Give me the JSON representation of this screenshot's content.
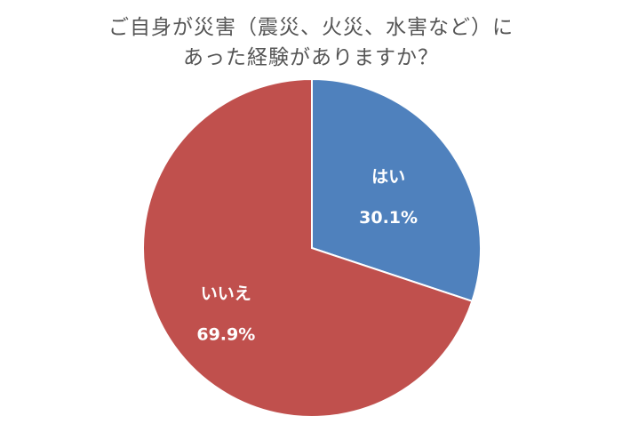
{
  "title_lines": [
    "ご自身が災害（震災、火災、水害など）に",
    "あった経験がありますか？"
  ],
  "chart_data": {
    "type": "pie",
    "title": "ご自身が災害（震災、火災、水害など）にあった経験がありますか？",
    "slices": [
      {
        "label": "はい",
        "value": 30.1,
        "value_label": "30.1%",
        "color": "#4f81bd"
      },
      {
        "label": "いいえ",
        "value": 69.9,
        "value_label": "69.9%",
        "color": "#c0504d"
      }
    ],
    "start_angle_deg": 0,
    "direction": "clockwise",
    "legend": "none"
  }
}
